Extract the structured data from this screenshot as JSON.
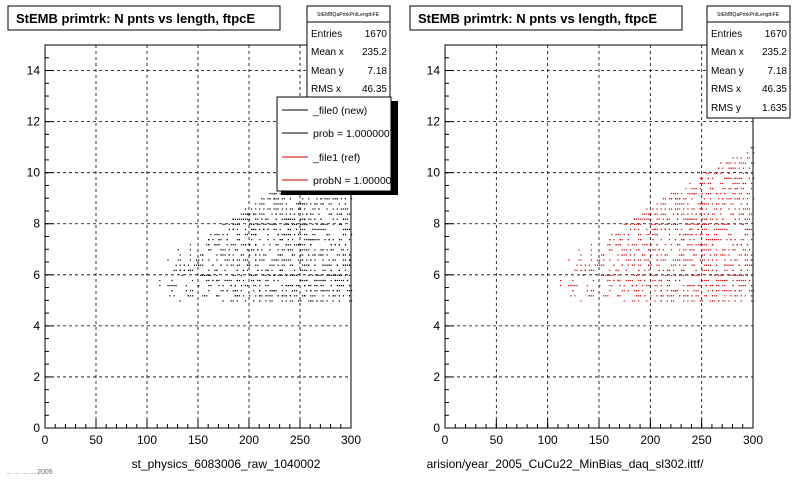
{
  "footer": {
    "left_caption": "st_physics_6083006_raw_1040002",
    "right_caption": "arision/year_2005_CuCu22_MinBias_daq_sl302.ittf/",
    "corner_fragment": "... ... ... ... 2005"
  },
  "colors": {
    "new_markers": "#000000",
    "ref_markers": "#cc0000",
    "frame": "#000000",
    "grid": "#000000"
  },
  "legend": {
    "entries": [
      {
        "label": "_file0 (new)",
        "color": "#000000"
      },
      {
        "label": "prob = 1.000000",
        "color": "#000000"
      },
      {
        "label": "_file1 (ref)",
        "color": "#cc0000"
      },
      {
        "label": "probN = 1.000000",
        "color": "#cc0000"
      }
    ]
  },
  "chart_data": [
    {
      "type": "scatter",
      "title": "StEMB primtrk: N pnts vs length, ftpcE",
      "stats_title": "StEMBQaPrtrkPntLengthFE",
      "stats": [
        {
          "label": "Entries",
          "value": "1670"
        },
        {
          "label": "Mean x",
          "value": "235.2"
        },
        {
          "label": "Mean y",
          "value": "7.18"
        },
        {
          "label": "RMS x",
          "value": "46.35"
        }
      ],
      "xlim": [
        0,
        300
      ],
      "ylim": [
        0,
        15
      ],
      "xticks": [
        "0",
        "50",
        "100",
        "150",
        "200",
        "250",
        "300"
      ],
      "yticks": [
        "0",
        "2",
        "4",
        "6",
        "8",
        "10",
        "12",
        "14"
      ],
      "grid": true,
      "xlabel": "",
      "ylabel": "",
      "series": [
        {
          "name": "_file0 (new)",
          "color": "#000000",
          "entries": 1670,
          "x_range": [
            110,
            300
          ],
          "y_range": [
            5.0,
            11.0
          ],
          "points_note": "dense scatter; sampled cloud"
        }
      ]
    },
    {
      "type": "scatter",
      "title": "StEMB primtrk: N pnts vs length, ftpcE",
      "stats_title": "StEMBQaPrtrkPntLengthFE",
      "stats": [
        {
          "label": "Entries",
          "value": "1670"
        },
        {
          "label": "Mean x",
          "value": "235.2"
        },
        {
          "label": "Mean y",
          "value": "7.18"
        },
        {
          "label": "RMS x",
          "value": "46.35"
        },
        {
          "label": "RMS y",
          "value": "1.635"
        }
      ],
      "xlim": [
        0,
        300
      ],
      "ylim": [
        0,
        15
      ],
      "xticks": [
        "0",
        "50",
        "100",
        "150",
        "200",
        "250",
        "300"
      ],
      "yticks": [
        "0",
        "2",
        "4",
        "6",
        "8",
        "10",
        "12",
        "14"
      ],
      "grid": true,
      "xlabel": "",
      "ylabel": "",
      "series": [
        {
          "name": "_file1 (ref)",
          "color": "#cc0000",
          "entries": 1670,
          "x_range": [
            110,
            300
          ],
          "y_range": [
            5.0,
            11.0
          ],
          "points_note": "dense scatter; sampled cloud"
        }
      ]
    }
  ]
}
